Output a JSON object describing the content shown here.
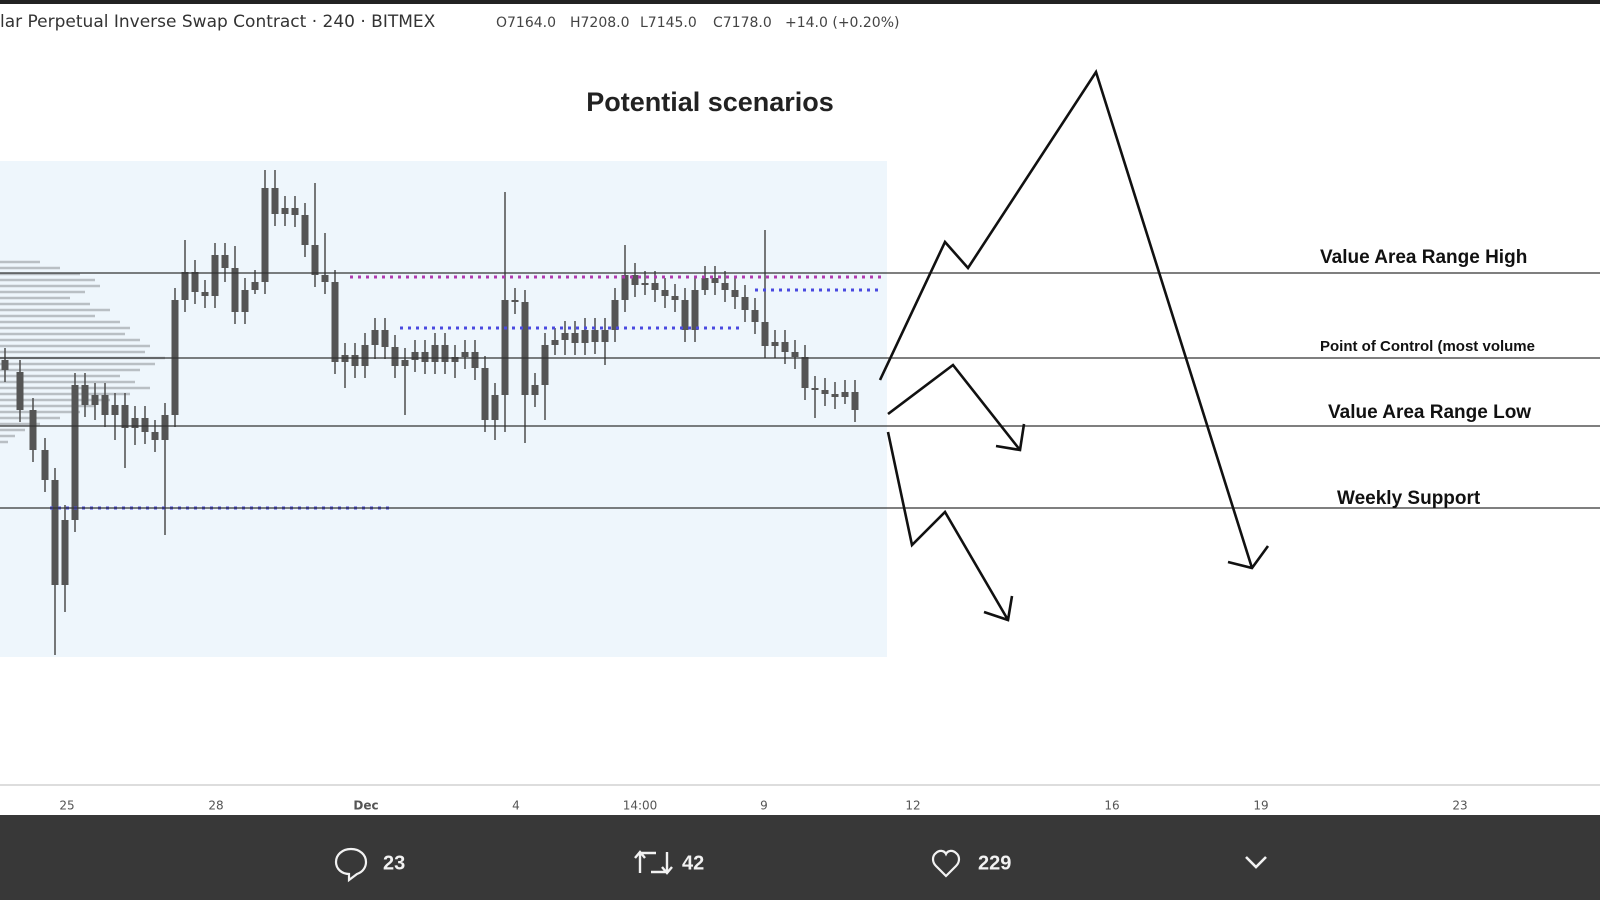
{
  "header": {
    "symbol": "lar Perpetual Inverse Swap Contract · 240 · BITMEX",
    "ohlc": [
      "O7164.0",
      "H7208.0",
      "L7145.0",
      "C7178.0",
      "+14.0 (+0.20%)"
    ]
  },
  "chart": {
    "title": "Potential scenarios",
    "levels": [
      "Value Area Range High",
      "Point of Control (most volume",
      "Value Area Range Low",
      "Weekly Support"
    ],
    "x_labels": [
      "25",
      "28",
      "Dec",
      "4",
      "14:00",
      "9",
      "12",
      "16",
      "19",
      "23"
    ]
  },
  "actions": {
    "reply": "23",
    "retweet": "42",
    "like": "229"
  }
}
